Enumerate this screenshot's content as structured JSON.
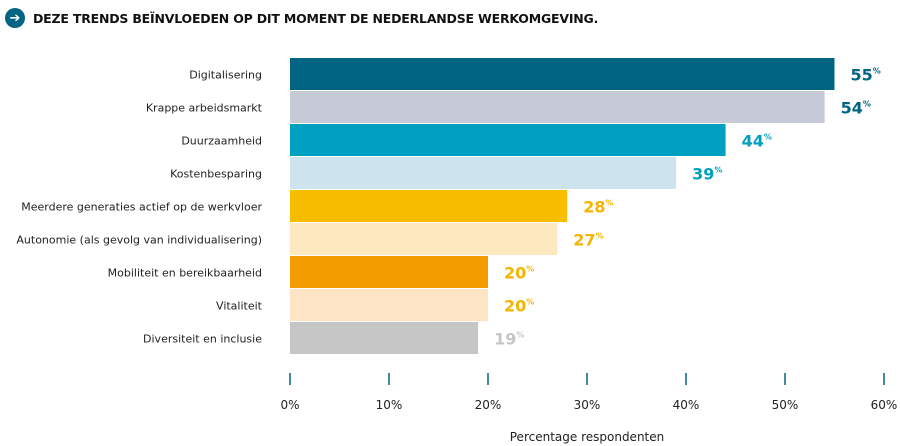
{
  "title": "DEZE TRENDS BEÏNVLOEDEN OP DIT MOMENT DE NEDERLANDSE WERKOMGEVING.",
  "title_icon": "arrow-right-circle-icon",
  "chart_data": {
    "type": "bar",
    "orientation": "horizontal",
    "categories": [
      "Digitalisering",
      "Krappe arbeidsmarkt",
      "Duurzaamheid",
      "Kostenbesparing",
      "Meerdere generaties actief op de werkvloer",
      "Autonomie (als gevolg van individualisering)",
      "Mobiliteit en bereikbaarheid",
      "Vitaliteit",
      "Diversiteit en inclusie"
    ],
    "values": [
      55,
      54,
      44,
      39,
      28,
      27,
      20,
      20,
      19
    ],
    "bar_colors": [
      "#006482",
      "#c5cad6",
      "#00a0c0",
      "#cde3ee",
      "#f9bd00",
      "#fde9c0",
      "#f39c00",
      "#fce4c4",
      "#c6c6c6"
    ],
    "label_colors": [
      "#006482",
      "#006482",
      "#00a0c0",
      "#00a0c0",
      "#f5b400",
      "#f5b400",
      "#f5b400",
      "#f5b400",
      "#c6c6c6"
    ],
    "value_suffix": "%",
    "xlabel": "Percentage respondenten",
    "xlim": [
      0,
      60
    ],
    "xticks": [
      "0%",
      "10%",
      "20%",
      "30%",
      "40%",
      "50%",
      "60%"
    ],
    "tick_color": "#006482",
    "grid": false,
    "legend": "none"
  }
}
